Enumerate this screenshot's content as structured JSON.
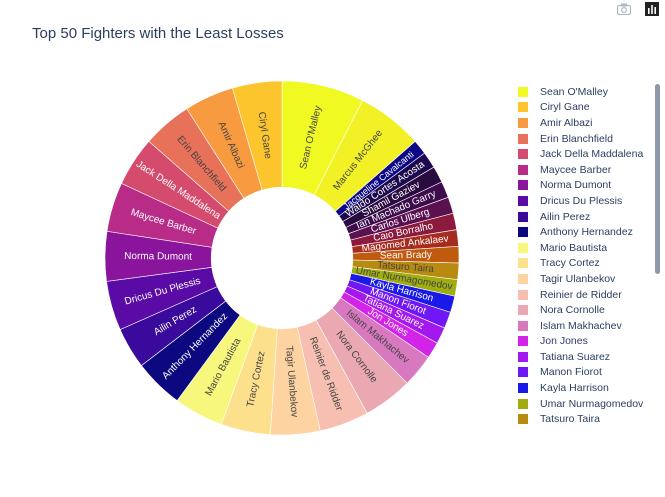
{
  "chart_data": {
    "type": "pie",
    "hole": 0.4,
    "title": "Top 50 Fighters with the Least Losses",
    "labels": [
      "Sean O'Malley",
      "Marcus McGhee",
      "Jacqueline Cavalcanti",
      "Waldo Cortes Acosta",
      "Shamil Gaziev",
      "Ian Machado Garry",
      "Carlos Ulberg",
      "Caio Borralho",
      "Magomed Ankalaev",
      "Sean Brady",
      "Tatsuro Taira",
      "Umar Nurmagomedov",
      "Kayla Harrison",
      "Manon Fiorot",
      "Tatiana Suarez",
      "Jon Jones",
      "Islam Makhachev",
      "Nora Cornolle",
      "Reinier de Ridder",
      "Tagir Ulanbekov",
      "Tracy Cortez",
      "Mario Bautista",
      "Anthony Hernandez",
      "Ailin Perez",
      "Dricus Du Plessis",
      "Norma Dumont",
      "Maycee Barber",
      "Jack Della Maddalena",
      "Erin Blanchfield",
      "Amir Albazi",
      "Ciryl Gane"
    ],
    "values": [
      5,
      4,
      0.9,
      1,
      1,
      1,
      1,
      1,
      1,
      1,
      1,
      1,
      1,
      1,
      1,
      1,
      2,
      3,
      3,
      3,
      3,
      3,
      3,
      2.5,
      3,
      3,
      3,
      3,
      3,
      3,
      3
    ],
    "colors": [
      "#f0f921",
      "#f2f126",
      "#0d0887",
      "#1d0a4e",
      "#2a0b40",
      "#3c0c4d",
      "#5b1050",
      "#8b1a3c",
      "#a52d1f",
      "#c05a0e",
      "#b88b10",
      "#a0ad10",
      "#1a1ae8",
      "#6f18f5",
      "#a418f0",
      "#d124e8",
      "#d878bf",
      "#eaa8b2",
      "#f6bfb1",
      "#fdd3a1",
      "#fde08c",
      "#f6f77c",
      "#0b0880",
      "#3a0a9c",
      "#5a0ba6",
      "#8a149c",
      "#b82c88",
      "#d44b6e",
      "#e8715a",
      "#f89a40",
      "#fdc52d"
    ],
    "text_colors": [
      "#444444",
      "#444444",
      "#ffffff",
      "#ffffff",
      "#ffffff",
      "#ffffff",
      "#ffffff",
      "#ffffff",
      "#ffffff",
      "#ffffff",
      "#444444",
      "#444444",
      "#ffffff",
      "#ffffff",
      "#ffffff",
      "#ffffff",
      "#444444",
      "#444444",
      "#444444",
      "#444444",
      "#444444",
      "#444444",
      "#ffffff",
      "#ffffff",
      "#ffffff",
      "#ffffff",
      "#ffffff",
      "#ffffff",
      "#444444",
      "#444444",
      "#444444"
    ],
    "legend_placement": "right",
    "legend": [
      {
        "label": "Sean O'Malley",
        "color": "#f0f921"
      },
      {
        "label": "Ciryl Gane",
        "color": "#fdc52d"
      },
      {
        "label": "Amir Albazi",
        "color": "#f89a40"
      },
      {
        "label": "Erin Blanchfield",
        "color": "#e8715a"
      },
      {
        "label": "Jack Della Maddalena",
        "color": "#d44b6e"
      },
      {
        "label": "Maycee Barber",
        "color": "#b82c88"
      },
      {
        "label": "Norma Dumont",
        "color": "#8a149c"
      },
      {
        "label": "Dricus Du Plessis",
        "color": "#5a0ba6"
      },
      {
        "label": "Ailin Perez",
        "color": "#3a0a9c"
      },
      {
        "label": "Anthony Hernandez",
        "color": "#0b0880"
      },
      {
        "label": "Mario Bautista",
        "color": "#f6f77c"
      },
      {
        "label": "Tracy Cortez",
        "color": "#fde08c"
      },
      {
        "label": "Tagir Ulanbekov",
        "color": "#fdd3a1"
      },
      {
        "label": "Reinier de Ridder",
        "color": "#f6bfb1"
      },
      {
        "label": "Nora Cornolle",
        "color": "#eaa8b2"
      },
      {
        "label": "Islam Makhachev",
        "color": "#d878bf"
      },
      {
        "label": "Jon Jones",
        "color": "#d124e8"
      },
      {
        "label": "Tatiana Suarez",
        "color": "#a418f0"
      },
      {
        "label": "Manon Fiorot",
        "color": "#6f18f5"
      },
      {
        "label": "Kayla Harrison",
        "color": "#1a1ae8"
      },
      {
        "label": "Umar Nurmagomedov",
        "color": "#a0ad10"
      },
      {
        "label": "Tatsuro Taira",
        "color": "#b88b10"
      }
    ]
  },
  "modebar": {
    "camera_icon": "camera-icon",
    "plotly_icon": "plotly-logo-icon"
  }
}
